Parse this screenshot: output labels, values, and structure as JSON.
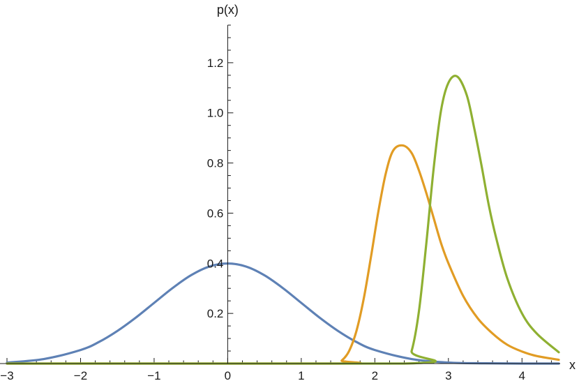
{
  "chart_data": {
    "type": "line",
    "xlabel": "x",
    "ylabel": "p(x)",
    "xlim": [
      -3,
      4.5
    ],
    "ylim": [
      0,
      1.35
    ],
    "grid": false,
    "x_ticks": [
      -3,
      -2,
      -1,
      0,
      1,
      2,
      3,
      4
    ],
    "x_tick_labels": [
      "−3",
      "−2",
      "−1",
      "0",
      "1",
      "2",
      "3",
      "4"
    ],
    "y_ticks": [
      0.2,
      0.4,
      0.6,
      0.8,
      1.0,
      1.2
    ],
    "y_tick_labels": [
      "0.2",
      "0.4",
      "0.6",
      "0.8",
      "1.0",
      "1.2"
    ],
    "x_minor_step": 0.2,
    "y_minor_step": 0.05,
    "series": [
      {
        "color": "#5E81B5",
        "x": [
          -3.0,
          -2.5,
          -2.0,
          -1.75,
          -1.5,
          -1.25,
          -1.0,
          -0.75,
          -0.5,
          -0.25,
          0.0,
          0.25,
          0.5,
          0.75,
          1.0,
          1.25,
          1.5,
          1.75,
          2.0,
          2.5,
          3.0,
          3.5,
          4.0,
          4.5
        ],
        "y": [
          0.004,
          0.018,
          0.054,
          0.086,
          0.13,
          0.183,
          0.242,
          0.301,
          0.352,
          0.387,
          0.399,
          0.387,
          0.352,
          0.301,
          0.242,
          0.183,
          0.13,
          0.086,
          0.054,
          0.018,
          0.004,
          0.001,
          0.0,
          0.0
        ]
      },
      {
        "color": "#E19C24",
        "x": [
          -3.0,
          1.45,
          1.55,
          1.65,
          1.75,
          1.85,
          1.95,
          2.05,
          2.15,
          2.25,
          2.38,
          2.5,
          2.6,
          2.7,
          2.8,
          2.9,
          3.0,
          3.2,
          3.4,
          3.6,
          3.8,
          4.0,
          4.2,
          4.5
        ],
        "y": [
          0.0,
          0.0,
          0.012,
          0.05,
          0.13,
          0.26,
          0.43,
          0.61,
          0.76,
          0.85,
          0.87,
          0.84,
          0.77,
          0.68,
          0.58,
          0.48,
          0.4,
          0.27,
          0.18,
          0.12,
          0.075,
          0.048,
          0.03,
          0.015
        ]
      },
      {
        "color": "#8FB032",
        "x": [
          -3.0,
          2.4,
          2.5,
          2.6,
          2.7,
          2.8,
          2.9,
          3.0,
          3.12,
          3.25,
          3.35,
          3.45,
          3.55,
          3.65,
          3.8,
          4.0,
          4.2,
          4.5
        ],
        "y": [
          0.0,
          0.0,
          0.05,
          0.21,
          0.48,
          0.78,
          1.01,
          1.12,
          1.145,
          1.07,
          0.94,
          0.79,
          0.63,
          0.5,
          0.34,
          0.2,
          0.12,
          0.045
        ]
      }
    ]
  }
}
